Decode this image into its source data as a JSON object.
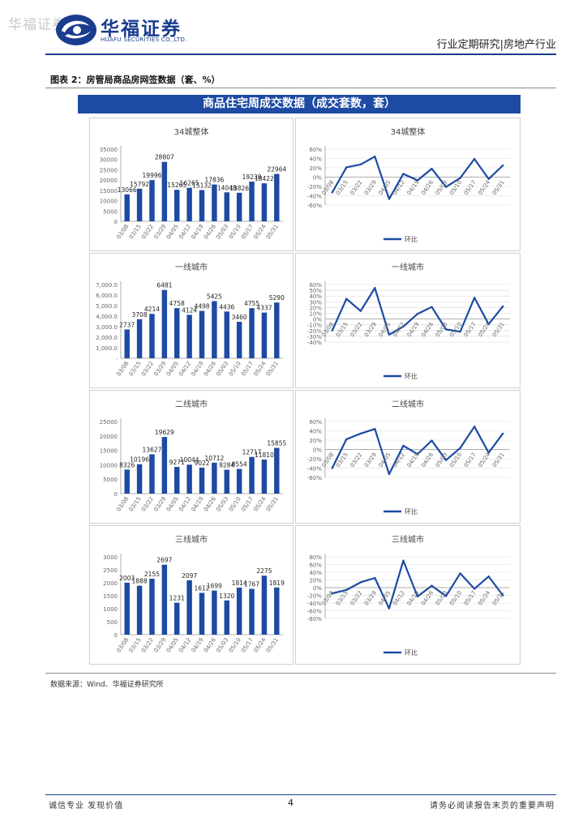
{
  "header": {
    "watermark": "华福证券",
    "logo_cn": "华福证券",
    "logo_en": "HUAFU SECURITIES CO.,LTD.",
    "report_type": "行业定期研究|房地产行业"
  },
  "figure": {
    "title": "图表 2：房管局商品房网签数据（套、%）",
    "banner": "商品住宅周成交数据（成交套数，套）",
    "source": "数据来源：Wind、华福证券研究所"
  },
  "footer": {
    "left": "诚信专业  发现价值",
    "page": "4",
    "right": "请务必阅读报告末页的重要声明"
  },
  "colors": {
    "brand": "#1a3c8e",
    "bar": "#1d4aa3",
    "line": "#1d4aa3",
    "grid": "#d9d9d9"
  },
  "chart_data": [
    {
      "type": "bar",
      "title": "34城整体",
      "categories": [
        "03/08",
        "03/15",
        "03/22",
        "03/29",
        "04/05",
        "04/12",
        "04/19",
        "04/26",
        "05/03",
        "05/10",
        "05/17",
        "05/24",
        "05/31"
      ],
      "values": [
        13066,
        15792,
        19996,
        28807,
        15265,
        16265,
        15132,
        17836,
        14048,
        13826,
        19238,
        18422,
        22964
      ],
      "labels": [
        "13066",
        "15792",
        "19996",
        "28807",
        "15265",
        "16265",
        "15132",
        "17836",
        "14048",
        "13826",
        "19238",
        "18422",
        "22964"
      ],
      "yticks": [
        "0",
        "5000",
        "10000",
        "15000",
        "20000",
        "25000",
        "30000",
        "35000"
      ],
      "ylim": [
        0,
        35000
      ]
    },
    {
      "type": "line",
      "title": "34城整体",
      "series_name": "环比",
      "categories": [
        "03/08",
        "03/15",
        "03/22",
        "03/29",
        "04/05",
        "04/12",
        "04/19",
        "04/26",
        "05/03",
        "05/10",
        "05/17",
        "05/24",
        "05/31"
      ],
      "values": [
        -33,
        21,
        27,
        44,
        -47,
        7,
        -7,
        18,
        -21,
        -2,
        39,
        -4,
        25
      ],
      "yticks": [
        "-60%",
        "-40%",
        "-20%",
        "0%",
        "20%",
        "40%",
        "60%"
      ],
      "ylim": [
        -60,
        60
      ]
    },
    {
      "type": "bar",
      "title": "一线城市",
      "categories": [
        "03/08",
        "03/15",
        "03/22",
        "03/29",
        "04/05",
        "04/12",
        "04/19",
        "04/26",
        "05/03",
        "05/10",
        "05/17",
        "05/24",
        "05/31"
      ],
      "values": [
        2737,
        3708,
        4214,
        6481,
        4758,
        4124,
        4498,
        5425,
        4436,
        3460,
        4755,
        4337,
        5290
      ],
      "labels": [
        "2737",
        "3708",
        "4214",
        "6481",
        "4758",
        "4124",
        "4498",
        "5425",
        "4436",
        "3460",
        "4755",
        "4337",
        "5290"
      ],
      "yticks": [
        "-",
        "1,000.0",
        "2,000.0",
        "3,000.0",
        "4,000.0",
        "5,000.0",
        "6,000.0",
        "7,000.0"
      ],
      "ylim": [
        0,
        7000
      ]
    },
    {
      "type": "line",
      "title": "一线城市",
      "series_name": "环比",
      "categories": [
        "03/08",
        "03/15",
        "03/22",
        "03/29",
        "04/05",
        "04/12",
        "04/19",
        "04/26",
        "05/03",
        "05/10",
        "05/17",
        "05/24",
        "05/31"
      ],
      "values": [
        -20,
        35,
        14,
        54,
        -27,
        -13,
        9,
        21,
        -18,
        -22,
        37,
        -9,
        22
      ],
      "yticks": [
        "-40%",
        "-30%",
        "-20%",
        "-10%",
        "0%",
        "10%",
        "20%",
        "30%",
        "40%",
        "50%",
        "60%"
      ],
      "ylim": [
        -40,
        60
      ]
    },
    {
      "type": "bar",
      "title": "二线城市",
      "categories": [
        "03/08",
        "03/15",
        "03/22",
        "03/29",
        "04/05",
        "04/12",
        "04/19",
        "04/26",
        "05/03",
        "05/10",
        "05/17",
        "05/24",
        "05/31"
      ],
      "values": [
        8326,
        10196,
        13627,
        19629,
        9271,
        10044,
        9022,
        10712,
        8284,
        8554,
        12717,
        11810,
        15855
      ],
      "labels": [
        "8326",
        "10196",
        "13627",
        "19629",
        "9271",
        "10044",
        "9022",
        "10712",
        "8284",
        "8554",
        "12717",
        "11810",
        "15855"
      ],
      "yticks": [
        "0",
        "5000",
        "10000",
        "15000",
        "20000",
        "25000"
      ],
      "ylim": [
        0,
        25000
      ]
    },
    {
      "type": "line",
      "title": "二线城市",
      "series_name": "环比",
      "categories": [
        "03/08",
        "03/15",
        "03/22",
        "03/29",
        "04/05",
        "04/12",
        "04/19",
        "04/26",
        "05/03",
        "05/10",
        "05/17",
        "05/24",
        "05/31"
      ],
      "values": [
        -40,
        22,
        34,
        44,
        -53,
        8,
        -10,
        19,
        -23,
        3,
        49,
        -7,
        34
      ],
      "yticks": [
        "-60%",
        "-40%",
        "-20%",
        "0%",
        "20%",
        "40%",
        "60%"
      ],
      "ylim": [
        -60,
        60
      ]
    },
    {
      "type": "bar",
      "title": "三线城市",
      "categories": [
        "03/08",
        "03/15",
        "03/22",
        "03/29",
        "04/05",
        "04/12",
        "04/19",
        "04/26",
        "05/03",
        "05/10",
        "05/17",
        "05/24",
        "05/31"
      ],
      "values": [
        2003,
        1888,
        2155,
        2697,
        1231,
        2097,
        1612,
        1699,
        1320,
        1814,
        1767,
        2275,
        1819
      ],
      "labels": [
        "2003",
        "1888",
        "2155",
        "2697",
        "1231",
        "2097",
        "1612",
        "1699",
        "1320",
        "1814",
        "1767",
        "2275",
        "1819"
      ],
      "yticks": [
        "0",
        "500",
        "1000",
        "1500",
        "2000",
        "2500",
        "3000"
      ],
      "ylim": [
        0,
        3000
      ]
    },
    {
      "type": "line",
      "title": "三线城市",
      "series_name": "环比",
      "categories": [
        "03/08",
        "03/15",
        "03/22",
        "03/29",
        "04/05",
        "04/12",
        "04/19",
        "04/26",
        "05/03",
        "05/10",
        "05/17",
        "05/24",
        "05/31"
      ],
      "values": [
        -15,
        -6,
        14,
        25,
        -54,
        70,
        -23,
        5,
        -22,
        37,
        -3,
        29,
        -20
      ],
      "yticks": [
        "-80%",
        "-60%",
        "-40%",
        "-20%",
        "0%",
        "20%",
        "40%",
        "60%",
        "80%"
      ],
      "ylim": [
        -80,
        80
      ]
    }
  ]
}
